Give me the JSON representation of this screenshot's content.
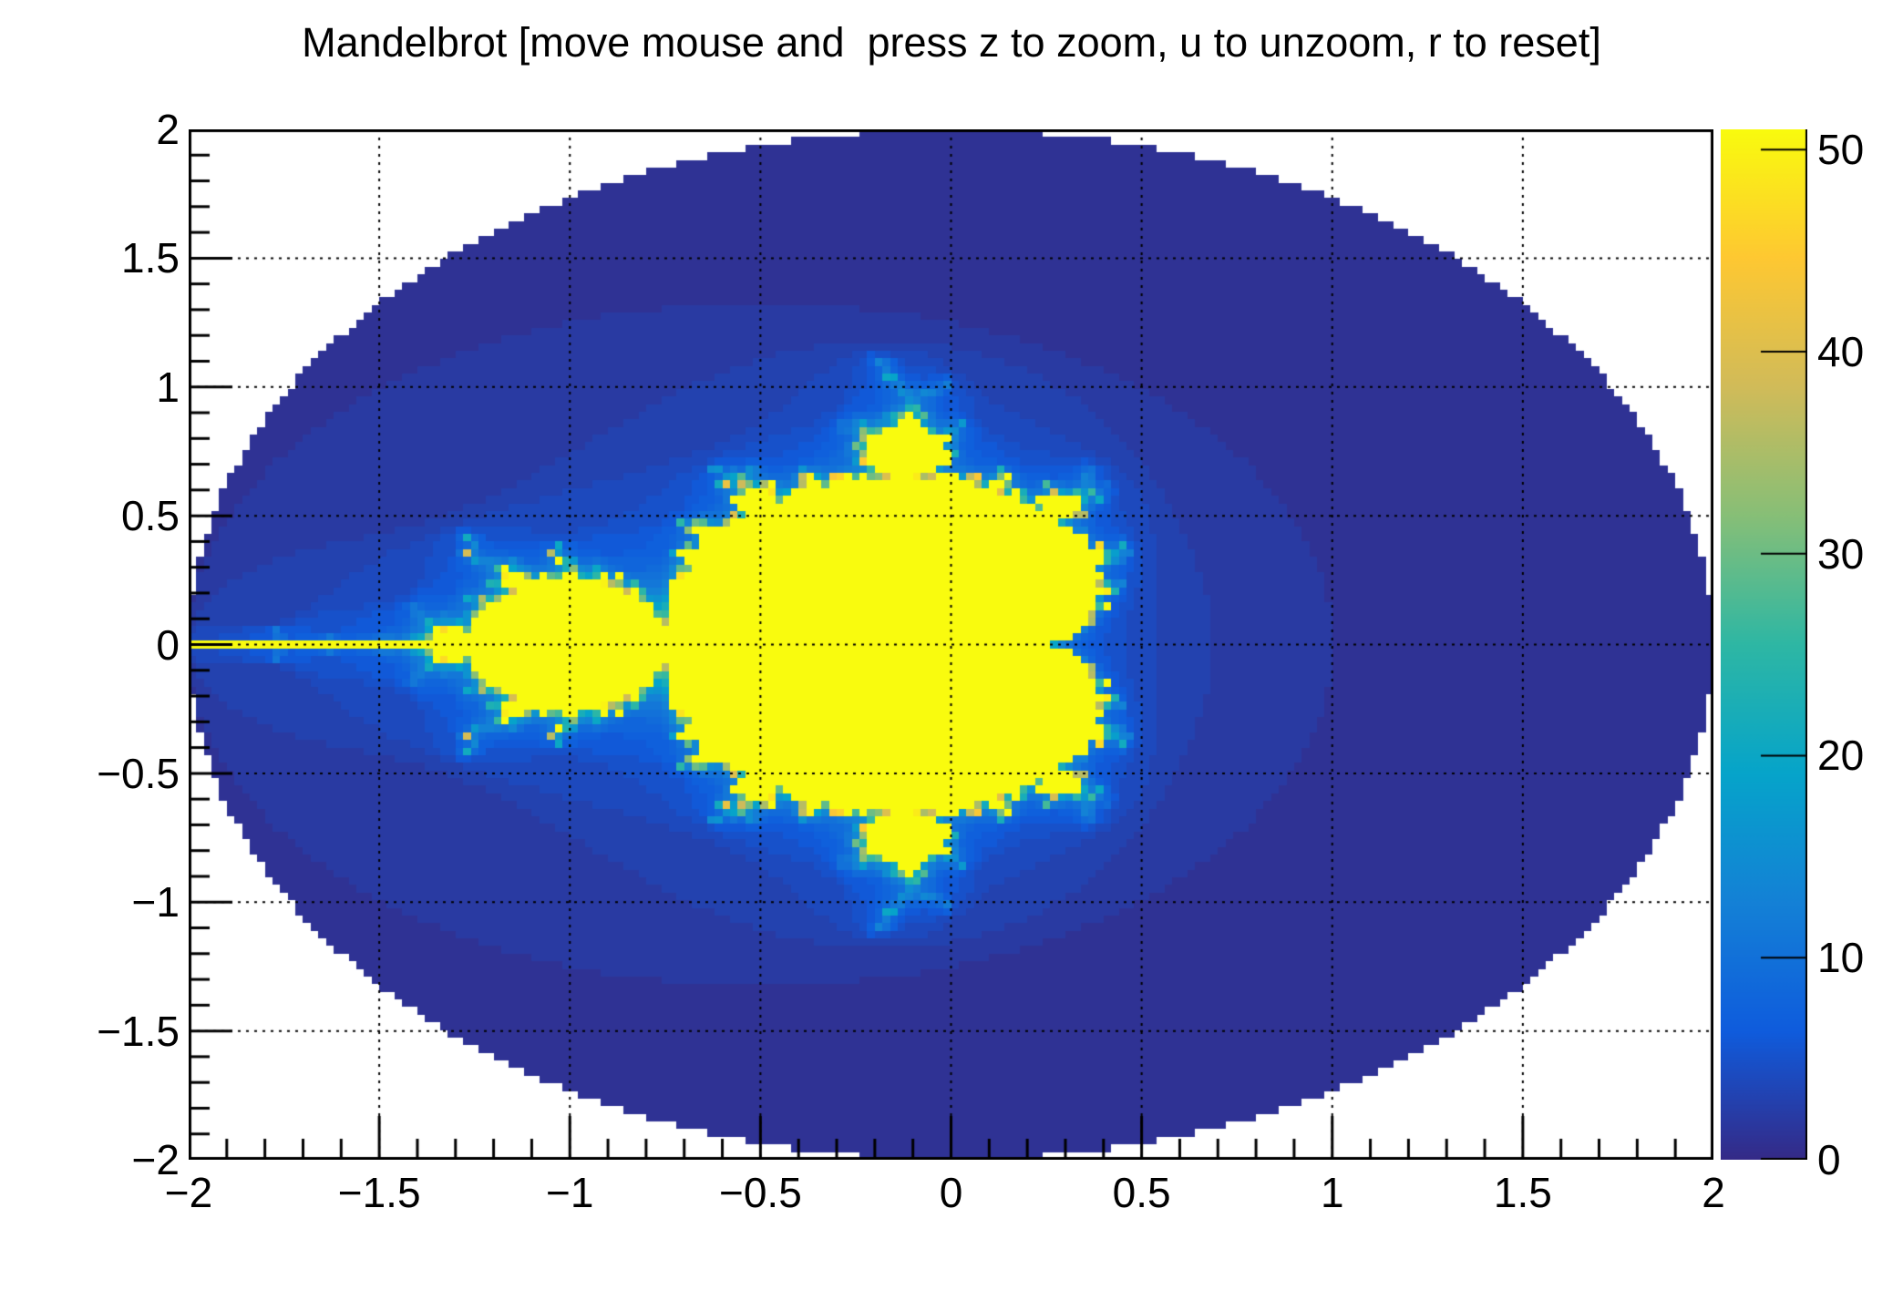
{
  "title": "Mandelbrot [move mouse and  press z to zoom, u to unzoom, r to reset]",
  "chart_data": {
    "type": "heatmap",
    "title": "Mandelbrot [move mouse and  press z to zoom, u to unzoom, r to reset]",
    "description": "Escape-time Mandelbrot iteration counts drawn as a ROOT TH2 COLZ histogram",
    "x_range": [
      -2,
      2
    ],
    "y_range": [
      -2,
      2
    ],
    "z_range": [
      0,
      51
    ],
    "bins_x": 200,
    "bins_y": 135,
    "iteration_rule": "z(n+1) = z(n)^2 + c, c = bin center, escape when |z| > 2, count capped at 51; count 0 (|c| > 2) bins left unpainted (white)",
    "max_iterations": 51,
    "x_ticks": [
      -2,
      -1.5,
      -1,
      -0.5,
      0,
      0.5,
      1,
      1.5,
      2
    ],
    "x_tick_labels": [
      "−2",
      "−1.5",
      "−1",
      "−0.5",
      "0",
      "0.5",
      "1",
      "1.5",
      "2"
    ],
    "y_ticks": [
      -2,
      -1.5,
      -1,
      -0.5,
      0,
      0.5,
      1,
      1.5,
      2
    ],
    "y_tick_labels": [
      "−2",
      "−1.5",
      "−1",
      "−0.5",
      "0",
      "0.5",
      "1",
      "1.5",
      "2"
    ],
    "minor_divisions_per_major": 5,
    "grid": {
      "show": true,
      "style": "dotted",
      "color": "#000000",
      "at_major_ticks": true
    },
    "colorbar": {
      "position": "right",
      "ticks": [
        0,
        10,
        20,
        30,
        40,
        50
      ],
      "labels": [
        "0",
        "10",
        "20",
        "30",
        "40",
        "50"
      ]
    },
    "palette": {
      "name": "kBird",
      "stops": [
        0,
        0.125,
        0.25,
        0.375,
        0.5,
        0.625,
        0.75,
        0.875,
        1
      ],
      "colors": [
        "#352A87",
        "#0F5CDD",
        "#1481D6",
        "#06A4CA",
        "#2EB7A4",
        "#87BF77",
        "#D1BB59",
        "#FEC832",
        "#F9FB0E"
      ]
    },
    "frame_color": "#000000",
    "background_color": "#FFFFFF"
  }
}
